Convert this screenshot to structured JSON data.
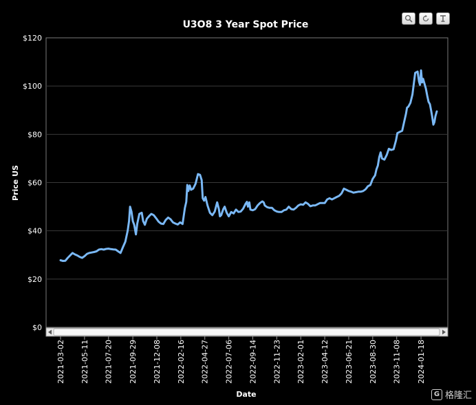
{
  "toolbar": {
    "zoom_icon": "magnifier-icon",
    "reset_icon": "reset-icon",
    "pan_icon": "pan-icon"
  },
  "watermark": {
    "text": "格隆汇",
    "logo_glyph": "G"
  },
  "colors": {
    "line": "#7ab8f5",
    "grid": "#3a3a3a",
    "axis": "#9a9a9a"
  },
  "chart_data": {
    "type": "line",
    "title": "U3O8 3 Year Spot Price",
    "xlabel": "Date",
    "ylabel": "Price US",
    "ylim": [
      0,
      120
    ],
    "yticks": [
      "$0",
      "$20",
      "$40",
      "$60",
      "$80",
      "$100",
      "$120"
    ],
    "xticks": [
      "2021-03-02",
      "2021-05-11",
      "2021-07-20",
      "2021-09-29",
      "2021-12-08",
      "2022-02-16",
      "2022-04-27",
      "2022-07-06",
      "2022-09-14",
      "2022-11-23",
      "2023-02-01",
      "2023-04-12",
      "2023-06-21",
      "2023-08-30",
      "2023-11-08",
      "2024-01-18"
    ],
    "grid": true,
    "series": [
      {
        "values": [
          [
            "2021-03-02",
            27.8
          ],
          [
            "2021-03-09",
            27.5
          ],
          [
            "2021-03-16",
            27.6
          ],
          [
            "2021-03-23",
            28.8
          ],
          [
            "2021-03-30",
            29.8
          ],
          [
            "2021-04-06",
            30.8
          ],
          [
            "2021-04-13",
            30.2
          ],
          [
            "2021-04-20",
            29.8
          ],
          [
            "2021-04-27",
            29.2
          ],
          [
            "2021-05-04",
            28.8
          ],
          [
            "2021-05-11",
            29.5
          ],
          [
            "2021-05-18",
            30.4
          ],
          [
            "2021-05-25",
            30.8
          ],
          [
            "2021-06-01",
            31.0
          ],
          [
            "2021-06-08",
            31.2
          ],
          [
            "2021-06-15",
            31.5
          ],
          [
            "2021-06-22",
            32.2
          ],
          [
            "2021-06-29",
            32.4
          ],
          [
            "2021-07-06",
            32.2
          ],
          [
            "2021-07-13",
            32.5
          ],
          [
            "2021-07-20",
            32.6
          ],
          [
            "2021-07-27",
            32.4
          ],
          [
            "2021-08-03",
            32.3
          ],
          [
            "2021-08-10",
            32.2
          ],
          [
            "2021-08-17",
            31.5
          ],
          [
            "2021-08-24",
            30.8
          ],
          [
            "2021-08-31",
            33.2
          ],
          [
            "2021-09-07",
            35.5
          ],
          [
            "2021-09-14",
            40.0
          ],
          [
            "2021-09-18",
            44.0
          ],
          [
            "2021-09-21",
            50.0
          ],
          [
            "2021-09-25",
            48.0
          ],
          [
            "2021-09-29",
            44.0
          ],
          [
            "2021-10-03",
            42.5
          ],
          [
            "2021-10-08",
            38.5
          ],
          [
            "2021-10-12",
            43.0
          ],
          [
            "2021-10-18",
            47.0
          ],
          [
            "2021-10-25",
            47.5
          ],
          [
            "2021-10-29",
            44.0
          ],
          [
            "2021-11-03",
            42.5
          ],
          [
            "2021-11-09",
            45.0
          ],
          [
            "2021-11-15",
            46.0
          ],
          [
            "2021-11-22",
            47.0
          ],
          [
            "2021-11-29",
            46.5
          ],
          [
            "2021-12-06",
            45.2
          ],
          [
            "2021-12-13",
            43.8
          ],
          [
            "2021-12-20",
            43.0
          ],
          [
            "2021-12-27",
            42.8
          ],
          [
            "2022-01-03",
            44.5
          ],
          [
            "2022-01-10",
            45.5
          ],
          [
            "2022-01-17",
            44.8
          ],
          [
            "2022-01-24",
            43.5
          ],
          [
            "2022-01-31",
            43.0
          ],
          [
            "2022-02-07",
            42.6
          ],
          [
            "2022-02-14",
            43.5
          ],
          [
            "2022-02-21",
            42.8
          ],
          [
            "2022-02-28",
            49.5
          ],
          [
            "2022-03-04",
            52.0
          ],
          [
            "2022-03-07",
            59.0
          ],
          [
            "2022-03-10",
            56.5
          ],
          [
            "2022-03-14",
            58.8
          ],
          [
            "2022-03-18",
            57.0
          ],
          [
            "2022-03-24",
            57.5
          ],
          [
            "2022-03-31",
            59.5
          ],
          [
            "2022-04-07",
            63.5
          ],
          [
            "2022-04-13",
            63.2
          ],
          [
            "2022-04-18",
            61.0
          ],
          [
            "2022-04-21",
            53.5
          ],
          [
            "2022-04-25",
            52.5
          ],
          [
            "2022-04-29",
            54.0
          ],
          [
            "2022-05-05",
            50.5
          ],
          [
            "2022-05-12",
            47.5
          ],
          [
            "2022-05-19",
            46.5
          ],
          [
            "2022-05-26",
            48.0
          ],
          [
            "2022-06-02",
            51.8
          ],
          [
            "2022-06-07",
            49.0
          ],
          [
            "2022-06-10",
            46.0
          ],
          [
            "2022-06-14",
            46.5
          ],
          [
            "2022-06-20",
            49.0
          ],
          [
            "2022-06-24",
            50.0
          ],
          [
            "2022-06-30",
            47.5
          ],
          [
            "2022-07-06",
            46.0
          ],
          [
            "2022-07-13",
            47.8
          ],
          [
            "2022-07-20",
            47.2
          ],
          [
            "2022-07-27",
            48.8
          ],
          [
            "2022-08-03",
            47.8
          ],
          [
            "2022-08-10",
            48.0
          ],
          [
            "2022-08-17",
            49.2
          ],
          [
            "2022-08-24",
            51.2
          ],
          [
            "2022-08-28",
            52.0
          ],
          [
            "2022-08-31",
            50.0
          ],
          [
            "2022-09-04",
            51.8
          ],
          [
            "2022-09-07",
            48.8
          ],
          [
            "2022-09-14",
            48.5
          ],
          [
            "2022-09-21",
            49.0
          ],
          [
            "2022-09-28",
            50.5
          ],
          [
            "2022-10-05",
            51.5
          ],
          [
            "2022-10-12",
            52.2
          ],
          [
            "2022-10-16",
            51.8
          ],
          [
            "2022-10-19",
            50.5
          ],
          [
            "2022-10-26",
            49.8
          ],
          [
            "2022-11-02",
            49.5
          ],
          [
            "2022-11-09",
            49.5
          ],
          [
            "2022-11-16",
            48.5
          ],
          [
            "2022-11-23",
            48.0
          ],
          [
            "2022-11-30",
            47.8
          ],
          [
            "2022-12-07",
            47.8
          ],
          [
            "2022-12-14",
            48.5
          ],
          [
            "2022-12-21",
            48.8
          ],
          [
            "2022-12-28",
            50.0
          ],
          [
            "2023-01-04",
            49.0
          ],
          [
            "2023-01-11",
            48.8
          ],
          [
            "2023-01-18",
            49.5
          ],
          [
            "2023-01-25",
            50.5
          ],
          [
            "2023-02-01",
            51.0
          ],
          [
            "2023-02-08",
            50.8
          ],
          [
            "2023-02-15",
            51.8
          ],
          [
            "2023-02-22",
            51.2
          ],
          [
            "2023-03-01",
            50.2
          ],
          [
            "2023-03-08",
            50.5
          ],
          [
            "2023-03-15",
            50.5
          ],
          [
            "2023-03-22",
            51.0
          ],
          [
            "2023-03-29",
            51.5
          ],
          [
            "2023-04-05",
            51.5
          ],
          [
            "2023-04-12",
            51.5
          ],
          [
            "2023-04-19",
            53.0
          ],
          [
            "2023-04-26",
            53.5
          ],
          [
            "2023-05-03",
            53.0
          ],
          [
            "2023-05-10",
            53.5
          ],
          [
            "2023-05-17",
            54.0
          ],
          [
            "2023-05-24",
            54.5
          ],
          [
            "2023-05-31",
            55.5
          ],
          [
            "2023-06-07",
            57.5
          ],
          [
            "2023-06-14",
            57.0
          ],
          [
            "2023-06-21",
            56.5
          ],
          [
            "2023-06-28",
            56.2
          ],
          [
            "2023-07-05",
            55.8
          ],
          [
            "2023-07-12",
            56.0
          ],
          [
            "2023-07-19",
            56.2
          ],
          [
            "2023-07-26",
            56.2
          ],
          [
            "2023-08-02",
            56.5
          ],
          [
            "2023-08-09",
            57.2
          ],
          [
            "2023-08-16",
            58.5
          ],
          [
            "2023-08-23",
            59.0
          ],
          [
            "2023-08-30",
            61.5
          ],
          [
            "2023-09-06",
            63.0
          ],
          [
            "2023-09-10",
            65.5
          ],
          [
            "2023-09-14",
            67.0
          ],
          [
            "2023-09-18",
            70.5
          ],
          [
            "2023-09-22",
            72.5
          ],
          [
            "2023-09-26",
            70.0
          ],
          [
            "2023-10-03",
            69.5
          ],
          [
            "2023-10-10",
            71.5
          ],
          [
            "2023-10-16",
            74.0
          ],
          [
            "2023-10-23",
            73.5
          ],
          [
            "2023-10-30",
            73.8
          ],
          [
            "2023-11-06",
            77.5
          ],
          [
            "2023-11-10",
            80.5
          ],
          [
            "2023-11-17",
            81.0
          ],
          [
            "2023-11-24",
            81.5
          ],
          [
            "2023-12-01",
            86.0
          ],
          [
            "2023-12-05",
            88.5
          ],
          [
            "2023-12-08",
            91.0
          ],
          [
            "2023-12-12",
            91.5
          ],
          [
            "2023-12-18",
            93.0
          ],
          [
            "2023-12-24",
            96.5
          ],
          [
            "2024-01-01",
            105.5
          ],
          [
            "2024-01-08",
            106.0
          ],
          [
            "2024-01-12",
            102.0
          ],
          [
            "2024-01-15",
            100.5
          ],
          [
            "2024-01-18",
            106.5
          ],
          [
            "2024-01-21",
            101.5
          ],
          [
            "2024-01-24",
            103.0
          ],
          [
            "2024-01-28",
            101.0
          ],
          [
            "2024-02-01",
            99.0
          ],
          [
            "2024-02-05",
            96.0
          ],
          [
            "2024-02-09",
            93.5
          ],
          [
            "2024-02-13",
            92.5
          ],
          [
            "2024-02-17",
            89.5
          ],
          [
            "2024-02-20",
            87.0
          ],
          [
            "2024-02-23",
            84.0
          ],
          [
            "2024-02-26",
            85.0
          ],
          [
            "2024-02-29",
            87.5
          ],
          [
            "2024-03-04",
            89.5
          ]
        ]
      }
    ]
  }
}
